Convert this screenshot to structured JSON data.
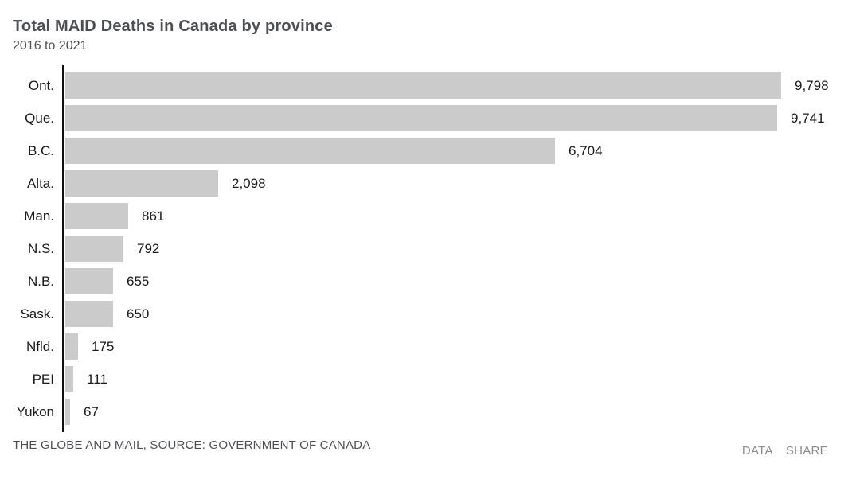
{
  "header": {
    "title": "Total MAID Deaths in Canada by province",
    "subtitle": "2016 to 2021"
  },
  "chart_data": {
    "type": "bar",
    "orientation": "horizontal",
    "title": "Total MAID Deaths in Canada by province",
    "subtitle": "2016 to 2021",
    "categories": [
      "Ont.",
      "Que.",
      "B.C.",
      "Alta.",
      "Man.",
      "N.S.",
      "N.B.",
      "Sask.",
      "Nfld.",
      "PEI",
      "Yukon"
    ],
    "values": [
      9798,
      9741,
      6704,
      2098,
      861,
      792,
      655,
      650,
      175,
      111,
      67
    ],
    "value_labels": [
      "9,798",
      "9,741",
      "6,704",
      "2,098",
      "861",
      "792",
      "655",
      "650",
      "175",
      "111",
      "67"
    ],
    "xlim": [
      0,
      9798
    ],
    "grid": false,
    "legend": false,
    "bar_color": "#cbcbcb",
    "axis_color": "#111111",
    "label_color": "#1a1a1a"
  },
  "footer": {
    "source": "THE GLOBE AND MAIL, SOURCE: GOVERNMENT OF CANADA",
    "links": [
      {
        "label": "DATA"
      },
      {
        "label": "SHARE"
      }
    ]
  }
}
